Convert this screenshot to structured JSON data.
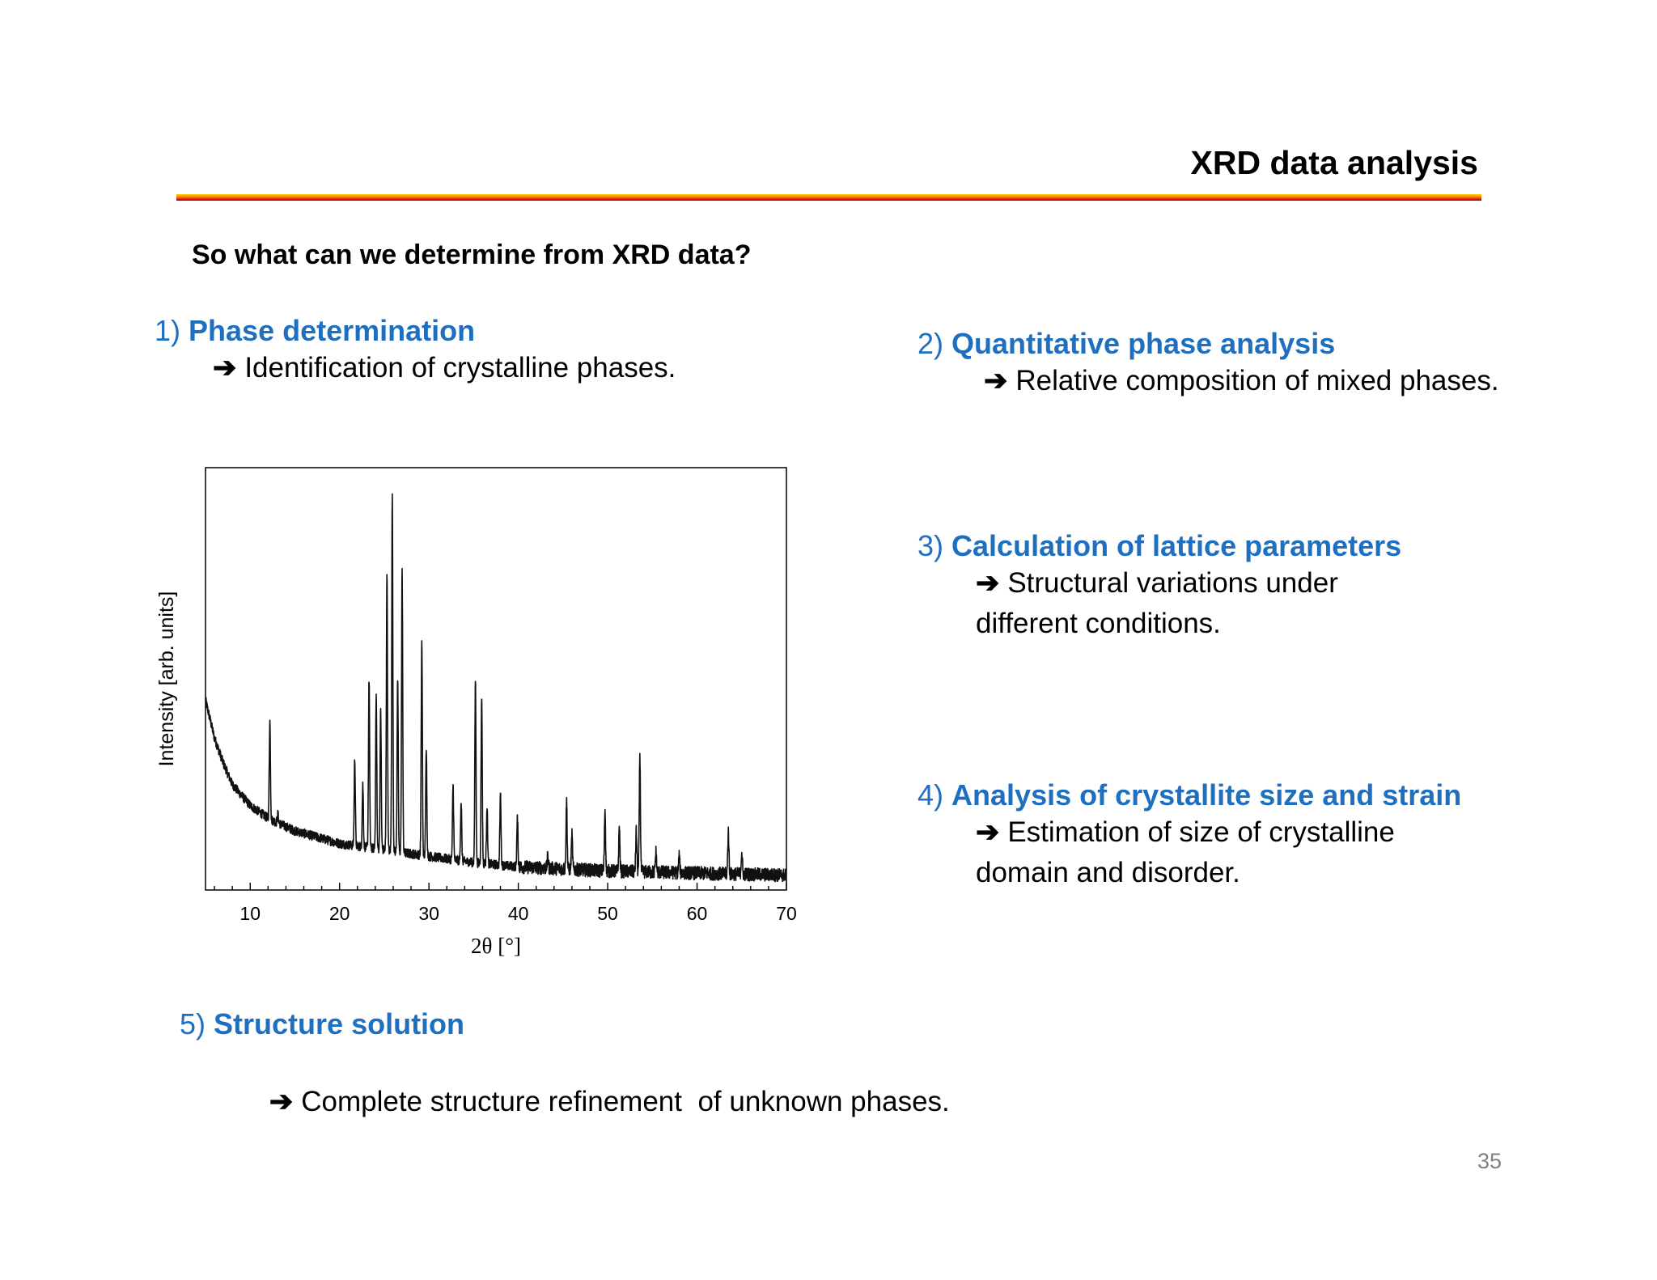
{
  "title": "XRD data analysis",
  "question": "So what can we determine from XRD data?",
  "arrow_glyph": "➔",
  "items": [
    {
      "number": "1)",
      "heading": "Phase determination",
      "description": "Identification of crystalline phases."
    },
    {
      "number": "2)",
      "heading": "Quantitative phase analysis",
      "description": "Relative composition of mixed phases."
    },
    {
      "number": "3)",
      "heading": "Calculation of lattice parameters",
      "description": "Structural variations under different conditions."
    },
    {
      "number": "4)",
      "heading": "Analysis of crystallite size and strain",
      "description": "Estimation of size of crystalline domain and disorder."
    },
    {
      "number": "5)",
      "heading": "Structure solution",
      "description": "Complete structure refinement  of unknown phases."
    }
  ],
  "page_number": "35",
  "colors": {
    "heading_blue": "#1f6fc0",
    "bar_top": "#ffd400",
    "bar_bottom": "#8b0000"
  },
  "chart_data": {
    "type": "line",
    "xlabel": "2θ [°]",
    "ylabel": "Intensity [arb. units]",
    "xlim": [
      5,
      70
    ],
    "ylim": [
      0,
      100
    ],
    "xticks": [
      10,
      20,
      30,
      40,
      50,
      60,
      70
    ],
    "background": {
      "x": [
        5,
        6,
        7,
        8,
        10,
        12,
        15,
        20,
        25,
        30,
        35,
        40,
        50,
        60,
        70
      ],
      "y": [
        45,
        36,
        30,
        25,
        20,
        17,
        14,
        11,
        9.5,
        8,
        6.5,
        5.5,
        4.5,
        4,
        3.5
      ]
    },
    "peaks": {
      "x": [
        12.2,
        13.1,
        21.7,
        22.6,
        23.3,
        24.1,
        24.6,
        25.3,
        25.9,
        26.5,
        27.0,
        29.2,
        29.7,
        32.7,
        33.6,
        35.2,
        35.9,
        36.5,
        38.0,
        39.9,
        43.3,
        45.4,
        46.0,
        49.7,
        51.3,
        53.2,
        53.6,
        55.4,
        58.0,
        63.5,
        65.0
      ],
      "y": [
        40,
        18,
        31,
        25,
        50,
        46,
        43,
        75,
        93,
        50,
        76,
        59,
        34,
        25,
        21,
        50,
        46,
        20,
        23,
        17,
        8,
        21,
        13,
        19,
        15,
        14,
        32,
        9,
        8,
        14,
        9
      ]
    }
  }
}
